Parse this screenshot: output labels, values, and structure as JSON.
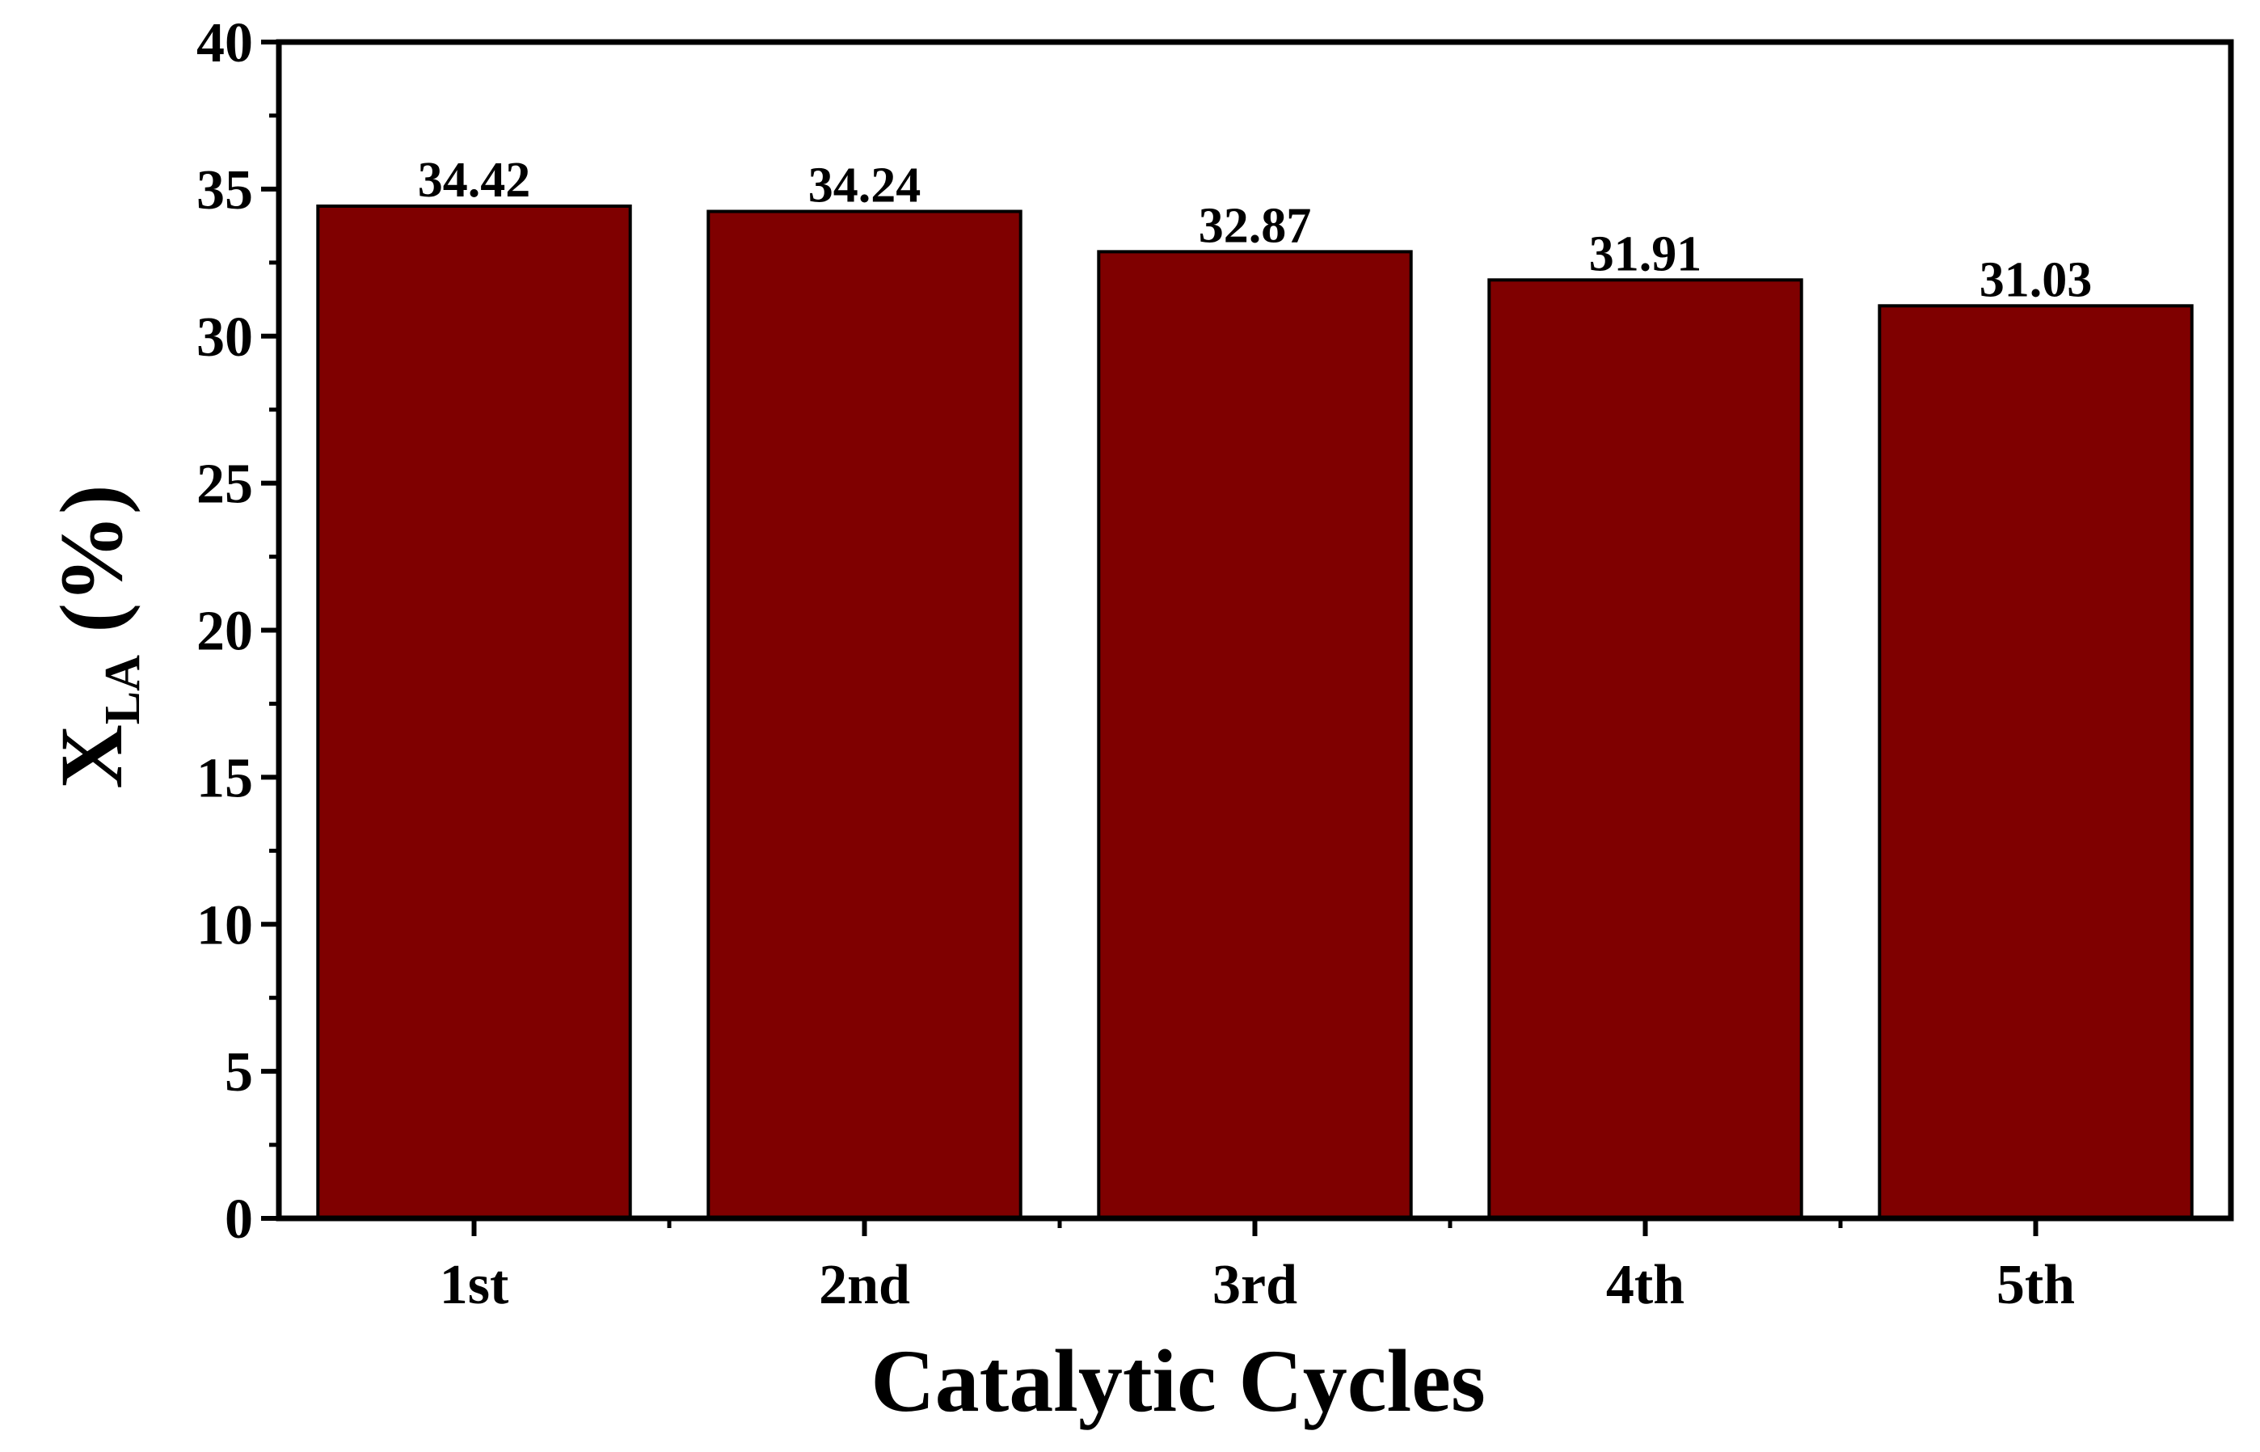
{
  "chart_data": {
    "type": "bar",
    "categories": [
      "1st",
      "2nd",
      "3rd",
      "4th",
      "5th"
    ],
    "values": [
      34.42,
      34.24,
      32.87,
      31.91,
      31.03
    ],
    "data_labels": [
      "34.42",
      "34.24",
      "32.87",
      "31.91",
      "31.03"
    ],
    "title": "",
    "xlabel": "Catalytic Cycles",
    "ylabel": {
      "main": "X",
      "subscript": "LA",
      "suffix": " (%)"
    },
    "ylim": [
      0,
      40
    ],
    "yticks": [
      0,
      5,
      10,
      15,
      20,
      25,
      30,
      35,
      40
    ],
    "ytick_labels": [
      "0",
      "5",
      "10",
      "15",
      "20",
      "25",
      "30",
      "35",
      "40"
    ],
    "grid": false,
    "legend": "none",
    "bar_color": "#7f0000",
    "edge_color": "#000000"
  }
}
